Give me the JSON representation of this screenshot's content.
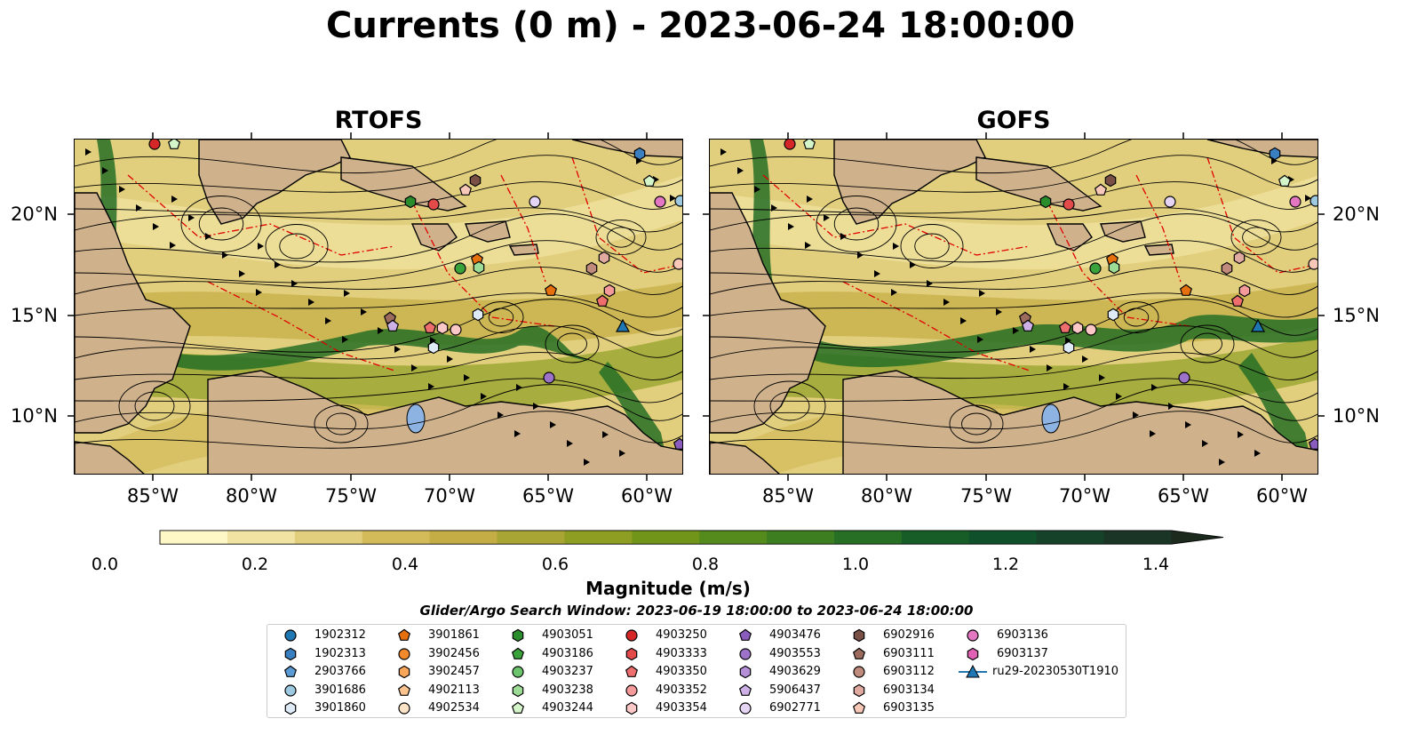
{
  "title": "Currents (0 m) - 2023-06-24 18:00:00",
  "panels": [
    {
      "title": "RTOFS"
    },
    {
      "title": "GOFS"
    }
  ],
  "axes": {
    "x_ticks": [
      "85°W",
      "80°W",
      "75°W",
      "70°W",
      "65°W",
      "60°W"
    ],
    "y_ticks": [
      "20°N",
      "15°N",
      "10°N"
    ]
  },
  "colorbar": {
    "label": "Magnitude (m/s)",
    "ticks": [
      "0.0",
      "0.2",
      "0.4",
      "0.6",
      "0.8",
      "1.0",
      "1.2",
      "1.4"
    ],
    "colors": [
      "#fdf8c6",
      "#f1e4a3",
      "#e2cf7e",
      "#d3bb5a",
      "#c4ad44",
      "#a9a534",
      "#8e9e23",
      "#709519",
      "#558a1c",
      "#3d7e21",
      "#266f24",
      "#165d27",
      "#10502a",
      "#16422a",
      "#1a3525",
      "#1c2a1e"
    ]
  },
  "search_window": "Glider/Argo Search Window: 2023-06-19 18:00:00 to 2023-06-24 18:00:00",
  "legend": [
    {
      "label": "1902312",
      "marker": "circle",
      "color": "#1f77b4"
    },
    {
      "label": "1902313",
      "marker": "hexagon",
      "color": "#3a7fbf"
    },
    {
      "label": "2903766",
      "marker": "pentagon",
      "color": "#5b9bd5"
    },
    {
      "label": "3901686",
      "marker": "circle",
      "color": "#9ecae1"
    },
    {
      "label": "3901860",
      "marker": "hexagon",
      "color": "#deebf7"
    },
    {
      "label": "3901861",
      "marker": "pentagon",
      "color": "#e6700d"
    },
    {
      "label": "3902456",
      "marker": "circle",
      "color": "#f2892b"
    },
    {
      "label": "3902457",
      "marker": "hexagon",
      "color": "#f8a65a"
    },
    {
      "label": "4902113",
      "marker": "pentagon",
      "color": "#fbc38e"
    },
    {
      "label": "4902534",
      "marker": "circle",
      "color": "#fde3c6"
    },
    {
      "label": "4903051",
      "marker": "hexagon",
      "color": "#2a8c2a"
    },
    {
      "label": "4903186",
      "marker": "pentagon",
      "color": "#3aa23a"
    },
    {
      "label": "4903237",
      "marker": "circle",
      "color": "#6cc46c"
    },
    {
      "label": "4903238",
      "marker": "hexagon",
      "color": "#9ddc96"
    },
    {
      "label": "4903244",
      "marker": "pentagon",
      "color": "#d4f5c9"
    },
    {
      "label": "4903250",
      "marker": "circle",
      "color": "#d62728"
    },
    {
      "label": "4903333",
      "marker": "hexagon",
      "color": "#e34a4a"
    },
    {
      "label": "4903350",
      "marker": "pentagon",
      "color": "#ee6e6e"
    },
    {
      "label": "4903352",
      "marker": "circle",
      "color": "#f59a9a"
    },
    {
      "label": "4903354",
      "marker": "hexagon",
      "color": "#fcc7c7"
    },
    {
      "label": "4903476",
      "marker": "pentagon",
      "color": "#8a5cbd"
    },
    {
      "label": "4903553",
      "marker": "circle",
      "color": "#9d72c9"
    },
    {
      "label": "4903629",
      "marker": "hexagon",
      "color": "#b58fd8"
    },
    {
      "label": "5906437",
      "marker": "pentagon",
      "color": "#cdb1e6"
    },
    {
      "label": "6902771",
      "marker": "circle",
      "color": "#e5d4f3"
    },
    {
      "label": "6902916",
      "marker": "hexagon",
      "color": "#7a5046"
    },
    {
      "label": "6903111",
      "marker": "pentagon",
      "color": "#9b6b5e"
    },
    {
      "label": "6903112",
      "marker": "circle",
      "color": "#c08a7c"
    },
    {
      "label": "6903134",
      "marker": "hexagon",
      "color": "#e1aaa0"
    },
    {
      "label": "6903135",
      "marker": "pentagon",
      "color": "#f7c8b8"
    },
    {
      "label": "6903136",
      "marker": "circle",
      "color": "#e377c2"
    },
    {
      "label": "6903137",
      "marker": "hexagon",
      "color": "#e060b5"
    },
    {
      "label": "ru29-20230530T1910",
      "marker": "triangle-line",
      "color": "#1f77b4"
    }
  ]
}
